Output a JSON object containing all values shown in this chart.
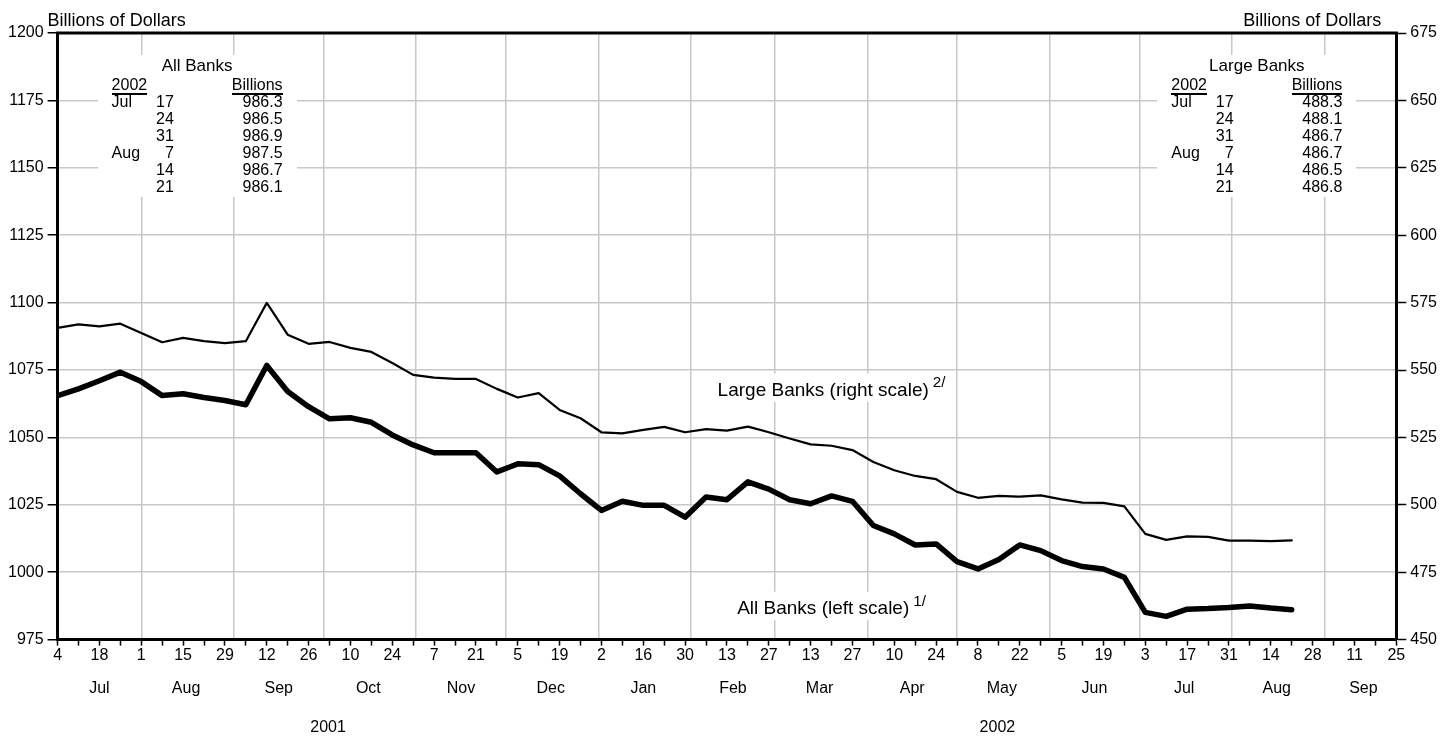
{
  "chart_data": {
    "type": "line",
    "ylabel": "Billions of Dollars",
    "y2label": "Billions of Dollars",
    "x": [
      "2001-07-04",
      "2001-07-11",
      "2001-07-18",
      "2001-07-25",
      "2001-08-01",
      "2001-08-08",
      "2001-08-15",
      "2001-08-22",
      "2001-08-29",
      "2001-09-05",
      "2001-09-12",
      "2001-09-19",
      "2001-09-26",
      "2001-10-03",
      "2001-10-10",
      "2001-10-17",
      "2001-10-24",
      "2001-10-31",
      "2001-11-07",
      "2001-11-14",
      "2001-11-21",
      "2001-11-28",
      "2001-12-05",
      "2001-12-12",
      "2001-12-19",
      "2001-12-26",
      "2002-01-02",
      "2002-01-09",
      "2002-01-16",
      "2002-01-23",
      "2002-01-30",
      "2002-02-06",
      "2002-02-13",
      "2002-02-20",
      "2002-02-27",
      "2002-03-06",
      "2002-03-13",
      "2002-03-20",
      "2002-03-27",
      "2002-04-03",
      "2002-04-10",
      "2002-04-17",
      "2002-04-24",
      "2002-05-01",
      "2002-05-08",
      "2002-05-15",
      "2002-05-22",
      "2002-05-29",
      "2002-06-05",
      "2002-06-12",
      "2002-06-19",
      "2002-06-26",
      "2002-07-03",
      "2002-07-10",
      "2002-07-17",
      "2002-07-24",
      "2002-07-31",
      "2002-08-07",
      "2002-08-14",
      "2002-08-21"
    ],
    "series": [
      {
        "name": "All Banks (left scale)$^{1/}$",
        "color": "#000000",
        "values": [
          1065.5,
          1068,
          1071,
          1074.2,
          1070.7,
          1065.5,
          1066.2,
          1064.8,
          1063.7,
          1062.1,
          1076.7,
          1067,
          1061.4,
          1056.9,
          1057.3,
          1055.6,
          1050.9,
          1047.2,
          1044.3,
          1044.3,
          1044.3,
          1037.2,
          1040.2,
          1039.9,
          1035.7,
          1029.1,
          1022.9,
          1026.3,
          1024.8,
          1024.8,
          1020.4,
          1027.9,
          1026.9,
          1033.5,
          1030.8,
          1026.9,
          1025.4,
          1028.3,
          1026.3,
          1017.3,
          1014.2,
          1010.1,
          1010.5,
          1003.9,
          1001.2,
          1004.7,
          1010.1,
          1008,
          1004.3,
          1002.1,
          1001.2,
          998.1,
          985.1,
          983.6,
          986.3,
          986.5,
          986.9,
          987.5,
          986.7,
          986.1
        ]
      },
      {
        "name": "Large Banks (right scale)$^{2/}$",
        "color": "#000000",
        "axis": "y2",
        "values": [
          565.6,
          566.9,
          566.2,
          567.2,
          563.7,
          560.3,
          561.9,
          560.7,
          560,
          560.7,
          574.9,
          563.1,
          559.7,
          560.4,
          558.2,
          556.7,
          552.6,
          548.2,
          547.2,
          546.7,
          546.7,
          543,
          539.8,
          541.4,
          535.2,
          532.1,
          526.9,
          526.5,
          527.8,
          528.9,
          526.9,
          528.1,
          527.5,
          529,
          526.9,
          524.6,
          522.4,
          521.9,
          520.3,
          515.9,
          512.8,
          510.7,
          509.5,
          504.8,
          502.6,
          503.3,
          503,
          503.5,
          502,
          500.8,
          500.7,
          499.4,
          489.2,
          487,
          488.3,
          488.1,
          486.7,
          486.7,
          486.5,
          486.8
        ]
      }
    ],
    "xlim": [
      "2001-07-04",
      "2002-09-25"
    ],
    "xticks": [
      {
        "value": "2001-07-04",
        "label": "4"
      },
      {
        "value": "2001-07-11",
        "label": null
      },
      {
        "value": "2001-07-18",
        "label": "18"
      },
      {
        "value": "2001-07-25",
        "label": null
      },
      {
        "value": "2001-08-01",
        "label": "1"
      },
      {
        "value": "2001-08-08",
        "label": null
      },
      {
        "value": "2001-08-15",
        "label": "15"
      },
      {
        "value": "2001-08-22",
        "label": null
      },
      {
        "value": "2001-08-29",
        "label": "29"
      },
      {
        "value": "2001-09-05",
        "label": null
      },
      {
        "value": "2001-09-12",
        "label": "12"
      },
      {
        "value": "2001-09-19",
        "label": null
      },
      {
        "value": "2001-09-26",
        "label": "26"
      },
      {
        "value": "2001-10-03",
        "label": null
      },
      {
        "value": "2001-10-10",
        "label": "10"
      },
      {
        "value": "2001-10-17",
        "label": null
      },
      {
        "value": "2001-10-24",
        "label": "24"
      },
      {
        "value": "2001-10-31",
        "label": null
      },
      {
        "value": "2001-11-07",
        "label": "7"
      },
      {
        "value": "2001-11-14",
        "label": null
      },
      {
        "value": "2001-11-21",
        "label": "21"
      },
      {
        "value": "2001-11-28",
        "label": null
      },
      {
        "value": "2001-12-05",
        "label": "5"
      },
      {
        "value": "2001-12-12",
        "label": null
      },
      {
        "value": "2001-12-19",
        "label": "19"
      },
      {
        "value": "2001-12-26",
        "label": null
      },
      {
        "value": "2002-01-02",
        "label": "2"
      },
      {
        "value": "2002-01-09",
        "label": null
      },
      {
        "value": "2002-01-16",
        "label": "16"
      },
      {
        "value": "2002-01-23",
        "label": null
      },
      {
        "value": "2002-01-30",
        "label": "30"
      },
      {
        "value": "2002-02-06",
        "label": null
      },
      {
        "value": "2002-02-13",
        "label": "13"
      },
      {
        "value": "2002-02-20",
        "label": null
      },
      {
        "value": "2002-02-27",
        "label": "27"
      },
      {
        "value": "2002-03-06",
        "label": null
      },
      {
        "value": "2002-03-13",
        "label": "13"
      },
      {
        "value": "2002-03-20",
        "label": null
      },
      {
        "value": "2002-03-27",
        "label": "27"
      },
      {
        "value": "2002-04-03",
        "label": null
      },
      {
        "value": "2002-04-10",
        "label": "10"
      },
      {
        "value": "2002-04-17",
        "label": null
      },
      {
        "value": "2002-04-24",
        "label": "24"
      },
      {
        "value": "2002-05-01",
        "label": null
      },
      {
        "value": "2002-05-08",
        "label": "8"
      },
      {
        "value": "2002-05-15",
        "label": null
      },
      {
        "value": "2002-05-22",
        "label": "22"
      },
      {
        "value": "2002-05-29",
        "label": null
      },
      {
        "value": "2002-06-05",
        "label": "5"
      },
      {
        "value": "2002-06-12",
        "label": null
      },
      {
        "value": "2002-06-19",
        "label": "19"
      },
      {
        "value": "2002-06-26",
        "label": null
      },
      {
        "value": "2002-07-03",
        "label": "3"
      },
      {
        "value": "2002-07-10",
        "label": null
      },
      {
        "value": "2002-07-17",
        "label": "17"
      },
      {
        "value": "2002-07-24",
        "label": null
      },
      {
        "value": "2002-07-31",
        "label": "31"
      },
      {
        "value": "2002-08-07",
        "label": null
      },
      {
        "value": "2002-08-14",
        "label": "14"
      },
      {
        "value": "2002-08-21",
        "label": null
      },
      {
        "value": "2002-08-28",
        "label": "28"
      },
      {
        "value": "2002-09-04",
        "label": null
      },
      {
        "value": "2002-09-11",
        "label": "11"
      },
      {
        "value": "2002-09-18",
        "label": null
      },
      {
        "value": "2002-09-25",
        "label": "25"
      }
    ],
    "x2lim": [
      "2001-07-04",
      "2002-09-25"
    ],
    "x2ticks": [
      {
        "value": "2001-07-18",
        "label": "Jul"
      },
      {
        "value": "2001-08-01",
        "label": null
      },
      {
        "value": "2001-08-16",
        "label": "Aug"
      },
      {
        "value": "2001-09-01",
        "label": null
      },
      {
        "value": "2001-09-16",
        "label": "Sep"
      },
      {
        "value": "2001-10-01",
        "label": null
      },
      {
        "value": "2001-10-16",
        "label": "Oct"
      },
      {
        "value": "2001-11-01",
        "label": null
      },
      {
        "value": "2001-11-16",
        "label": "Nov"
      },
      {
        "value": "2001-12-01",
        "label": null
      },
      {
        "value": "2001-12-16",
        "label": "Dec"
      },
      {
        "value": "2002-01-01",
        "label": null
      },
      {
        "value": "2002-01-16",
        "label": "Jan"
      },
      {
        "value": "2002-02-01",
        "label": null
      },
      {
        "value": "2002-02-15",
        "label": "Feb"
      },
      {
        "value": "2002-03-01",
        "label": null
      },
      {
        "value": "2002-03-16",
        "label": "Mar"
      },
      {
        "value": "2002-04-01",
        "label": null
      },
      {
        "value": "2002-04-16",
        "label": "Apr"
      },
      {
        "value": "2002-05-01",
        "label": null
      },
      {
        "value": "2002-05-16",
        "label": "May"
      },
      {
        "value": "2002-06-01",
        "label": null
      },
      {
        "value": "2002-06-16",
        "label": "Jun"
      },
      {
        "value": "2002-07-01",
        "label": null
      },
      {
        "value": "2002-07-16",
        "label": "Jul"
      },
      {
        "value": "2002-08-01",
        "label": null
      },
      {
        "value": "2002-08-16",
        "label": "Aug"
      },
      {
        "value": "2002-09-01",
        "label": null
      },
      {
        "value": "2002-09-14",
        "label": "Sep"
      }
    ],
    "ylim": [
      975,
      1200
    ],
    "yticks": [
      975,
      1000,
      1025,
      1050,
      1075,
      1100,
      1125,
      1150,
      1175,
      1200
    ],
    "y2lim": [
      450,
      675
    ],
    "y2ticks": [
      450,
      475,
      500,
      525,
      550,
      575,
      600,
      625,
      650,
      675
    ],
    "grid": true,
    "annotations": [
      "All Banks\n2002\tBillions\nJul\t17\t986.3\n\t24\t986.5\n\t31\t986.9\nAug\t7\t987.5\n\t14\t986.7\n\t21\t986.1",
      "Large Banks\n2002\tBillions\nJul\t17\t488.3\n\t24\t488.1\n\t31\t486.7\nAug\t7\t486.7\n\t14\t486.5\n\t21\t486.8",
      "2001",
      "2002"
    ]
  }
}
